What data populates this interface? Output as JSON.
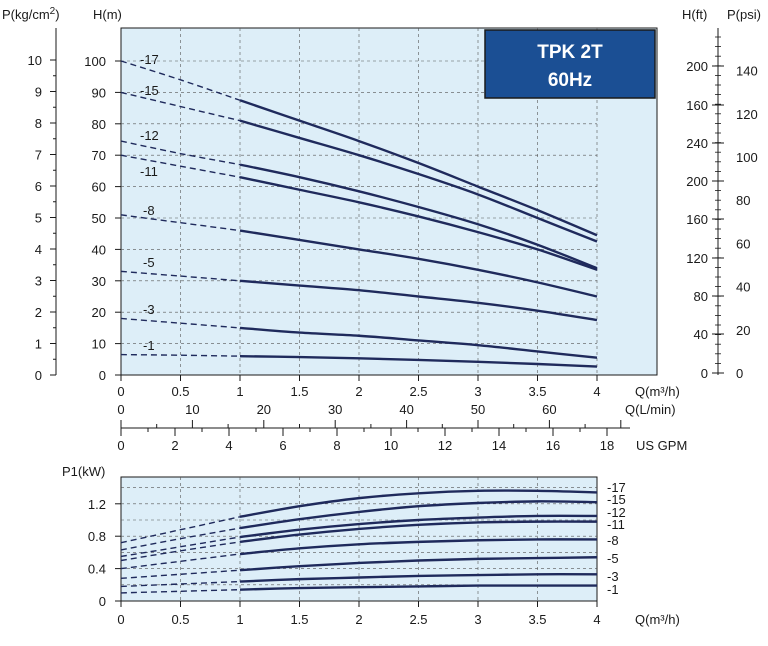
{
  "chart_data": [
    {
      "type": "line",
      "title": "TPK 2T",
      "subtitle": "60Hz",
      "xlabel": "Q(m³/h)",
      "ylabel": "H(m)",
      "xlim": [
        0,
        4
      ],
      "ylim": [
        0,
        110
      ],
      "x_ticks": [
        "0",
        "0.5",
        "1",
        "1.5",
        "2",
        "2.5",
        "3",
        "3.5",
        "4"
      ],
      "y_ticks": [
        "0",
        "10",
        "20",
        "30",
        "40",
        "50",
        "60",
        "70",
        "80",
        "90",
        "100"
      ],
      "secondary_axes": {
        "flow_lmin": {
          "label": "Q(L/min)",
          "ticks": [
            "0",
            "10",
            "20",
            "30",
            "40",
            "50",
            "60"
          ]
        },
        "flow_usgpm": {
          "label": "US GPM",
          "ticks": [
            "0",
            "2",
            "4",
            "6",
            "8",
            "10",
            "12",
            "14",
            "16",
            "18"
          ]
        },
        "pressure_kgcm2": {
          "label": "P(kg/cm²)",
          "ticks": [
            "0",
            "1",
            "2",
            "3",
            "4",
            "5",
            "6",
            "7",
            "8",
            "9",
            "10"
          ]
        },
        "head_ft": {
          "label": "H(ft)",
          "ticks": [
            "0",
            "40",
            "80",
            "120",
            "160",
            "200",
            "240",
            "160",
            "200"
          ]
        },
        "pressure_psi": {
          "label": "P(psi)",
          "ticks": [
            "0",
            "20",
            "40",
            "60",
            "80",
            "100",
            "120",
            "140"
          ]
        }
      },
      "dashed_below_x": 1,
      "grid": true,
      "series": [
        {
          "name": "-17",
          "x": [
            0,
            0.5,
            1,
            1.5,
            2,
            2.5,
            3,
            3.5,
            4
          ],
          "y": [
            100,
            94,
            87.5,
            81,
            74.5,
            67.5,
            60,
            52.5,
            44.5
          ]
        },
        {
          "name": "-15",
          "x": [
            0,
            0.5,
            1,
            1.5,
            2,
            2.5,
            3,
            3.5,
            4
          ],
          "y": [
            90,
            85.5,
            81,
            75.5,
            70,
            64,
            57.5,
            50,
            42.5
          ]
        },
        {
          "name": "-12",
          "x": [
            0,
            0.5,
            1,
            1.5,
            2,
            2.5,
            3,
            3.5,
            4
          ],
          "y": [
            74.5,
            70.5,
            67,
            63,
            58.5,
            53.5,
            48,
            41.5,
            34
          ]
        },
        {
          "name": "-11",
          "x": [
            0,
            0.5,
            1,
            1.5,
            2,
            2.5,
            3,
            3.5,
            4
          ],
          "y": [
            70,
            66.5,
            63,
            59,
            55,
            50.5,
            45.5,
            40,
            33.5
          ]
        },
        {
          "name": "-8",
          "x": [
            0,
            0.5,
            1,
            1.5,
            2,
            2.5,
            3,
            3.5,
            4
          ],
          "y": [
            51,
            48.5,
            46,
            43,
            40,
            37,
            33.5,
            29.5,
            25
          ]
        },
        {
          "name": "-5",
          "x": [
            0,
            0.5,
            1,
            1.5,
            2,
            2.5,
            3,
            3.5,
            4
          ],
          "y": [
            33,
            31.5,
            30,
            28.5,
            27,
            25,
            23,
            20.5,
            17.5
          ]
        },
        {
          "name": "-3",
          "x": [
            0,
            0.5,
            1,
            1.5,
            2,
            2.5,
            3,
            3.5,
            4
          ],
          "y": [
            18,
            16.5,
            15,
            13.5,
            12.5,
            11,
            9.5,
            7.5,
            5.5
          ]
        },
        {
          "name": "-1",
          "x": [
            0,
            0.5,
            1,
            1.5,
            2,
            2.5,
            3,
            3.5,
            4
          ],
          "y": [
            6.5,
            6.3,
            6.0,
            5.7,
            5.3,
            4.8,
            4.2,
            3.5,
            2.7
          ]
        }
      ]
    },
    {
      "type": "line",
      "xlabel": "Q(m³/h)",
      "ylabel": "P1(kW)",
      "xlim": [
        0,
        4
      ],
      "ylim": [
        0,
        1.5
      ],
      "x_ticks": [
        "0",
        "0.5",
        "1",
        "1.5",
        "2",
        "2.5",
        "3",
        "3.5",
        "4"
      ],
      "y_ticks": [
        "0",
        "0.4",
        "0.8",
        "1.2"
      ],
      "dashed_below_x": 1,
      "grid": true,
      "series": [
        {
          "name": "-17",
          "x": [
            0,
            0.5,
            1,
            1.5,
            2,
            2.5,
            3,
            3.5,
            4
          ],
          "y": [
            0.72,
            0.88,
            1.04,
            1.17,
            1.27,
            1.33,
            1.36,
            1.36,
            1.34
          ]
        },
        {
          "name": "-15",
          "x": [
            0,
            0.5,
            1,
            1.5,
            2,
            2.5,
            3,
            3.5,
            4
          ],
          "y": [
            0.63,
            0.77,
            0.9,
            1.01,
            1.1,
            1.17,
            1.21,
            1.23,
            1.22
          ]
        },
        {
          "name": "-12",
          "x": [
            0,
            0.5,
            1,
            1.5,
            2,
            2.5,
            3,
            3.5,
            4
          ],
          "y": [
            0.55,
            0.67,
            0.79,
            0.88,
            0.95,
            1.0,
            1.03,
            1.05,
            1.05
          ]
        },
        {
          "name": "-11",
          "x": [
            0,
            0.5,
            1,
            1.5,
            2,
            2.5,
            3,
            3.5,
            4
          ],
          "y": [
            0.5,
            0.62,
            0.73,
            0.82,
            0.89,
            0.94,
            0.97,
            0.98,
            0.98
          ]
        },
        {
          "name": "-8",
          "x": [
            0,
            0.5,
            1,
            1.5,
            2,
            2.5,
            3,
            3.5,
            4
          ],
          "y": [
            0.4,
            0.49,
            0.58,
            0.65,
            0.7,
            0.73,
            0.75,
            0.76,
            0.76
          ]
        },
        {
          "name": "-5",
          "x": [
            0,
            0.5,
            1,
            1.5,
            2,
            2.5,
            3,
            3.5,
            4
          ],
          "y": [
            0.28,
            0.33,
            0.38,
            0.43,
            0.47,
            0.5,
            0.52,
            0.53,
            0.54
          ]
        },
        {
          "name": "-3",
          "x": [
            0,
            0.5,
            1,
            1.5,
            2,
            2.5,
            3,
            3.5,
            4
          ],
          "y": [
            0.18,
            0.21,
            0.24,
            0.27,
            0.29,
            0.31,
            0.32,
            0.33,
            0.33
          ]
        },
        {
          "name": "-1",
          "x": [
            0,
            0.5,
            1,
            1.5,
            2,
            2.5,
            3,
            3.5,
            4
          ],
          "y": [
            0.1,
            0.12,
            0.14,
            0.16,
            0.17,
            0.18,
            0.19,
            0.19,
            0.19
          ]
        }
      ]
    }
  ],
  "colors": {
    "plot_background": "#ddeef8",
    "curve": "#1f2a5c",
    "grid": "#555555",
    "title_box": "#1b4f94",
    "title_text": "#ffffff"
  }
}
